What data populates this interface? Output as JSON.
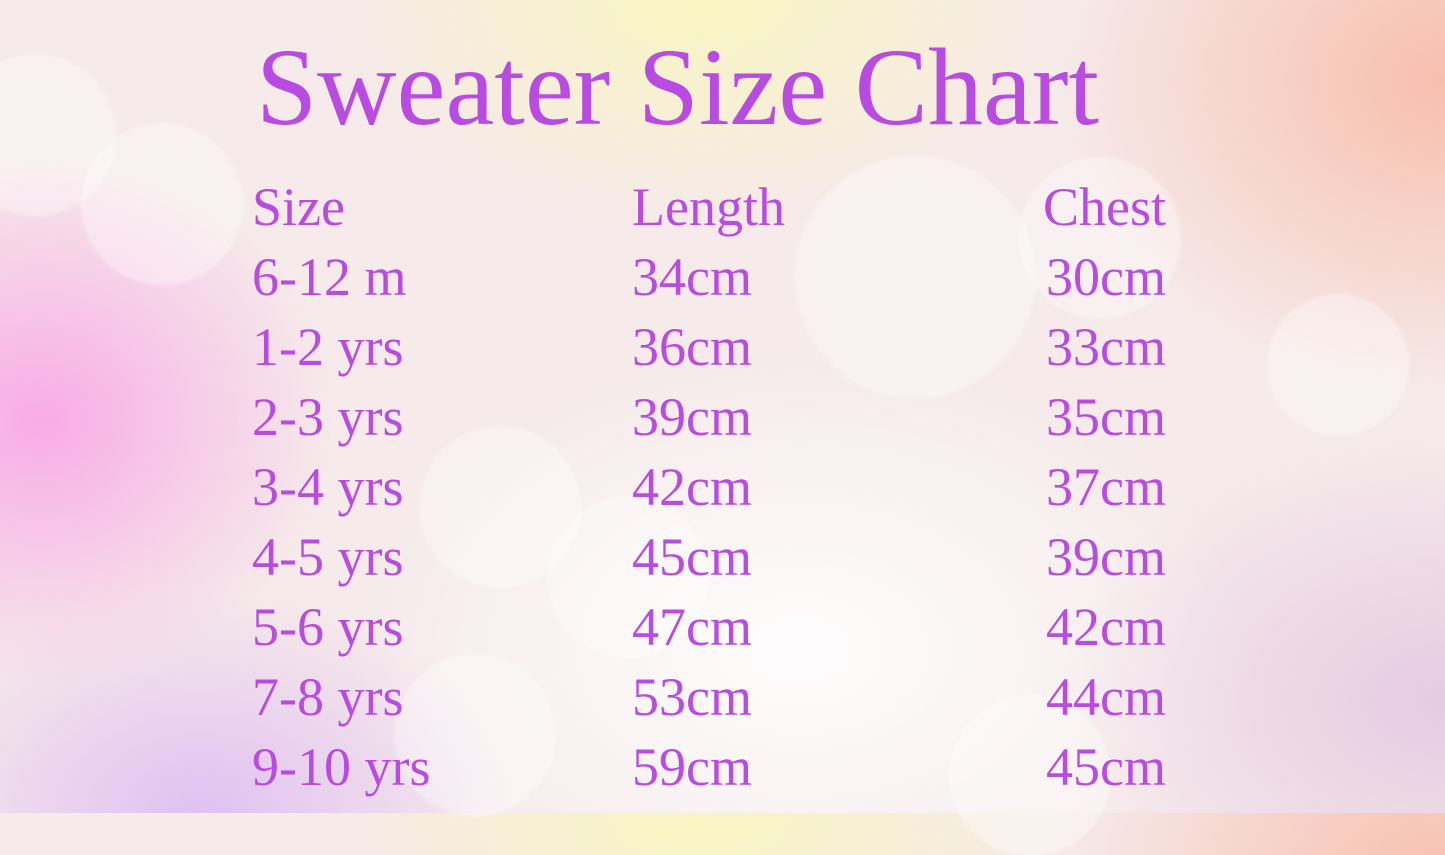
{
  "title": "Sweater Size Chart",
  "text_color": "#b84be0",
  "table": {
    "headers": [
      "Size",
      "Length",
      "Chest"
    ],
    "rows": [
      [
        "6-12 m",
        "34cm",
        "30cm"
      ],
      [
        "1-2 yrs",
        "36cm",
        "33cm"
      ],
      [
        "2-3 yrs",
        "39cm",
        "35cm"
      ],
      [
        "3-4 yrs",
        "42cm",
        "37cm"
      ],
      [
        "4-5 yrs",
        "45cm",
        "39cm"
      ],
      [
        "5-6 yrs",
        "47cm",
        "42cm"
      ],
      [
        "7-8 yrs",
        "53cm",
        "44cm"
      ],
      [
        "9-10 yrs",
        "59cm",
        "45cm"
      ]
    ]
  }
}
